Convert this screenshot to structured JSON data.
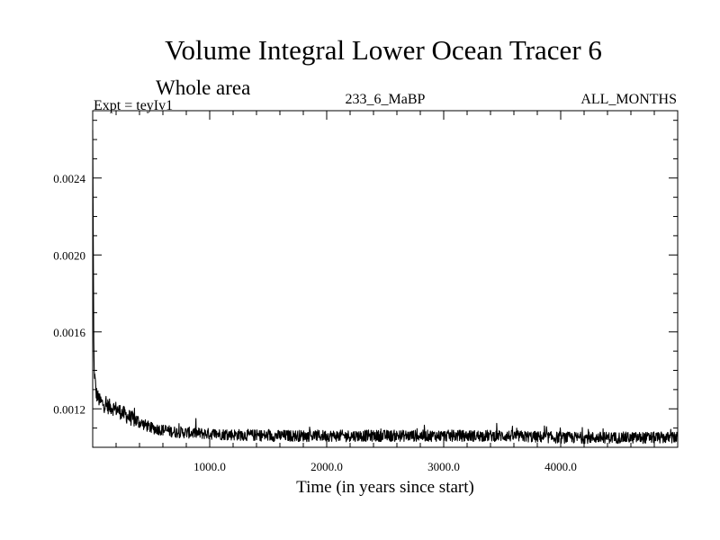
{
  "chart_data": {
    "type": "line",
    "title": "Volume Integral Lower Ocean Tracer 6",
    "subtitle": "Whole area",
    "experiment_label": "Expt = teyIv1",
    "center_label": "233_6_MaBP",
    "months_label": "ALL_MONTHS",
    "xlabel": "Time (in years since start)",
    "ylabel": "",
    "xlim": [
      0,
      5000
    ],
    "ylim": [
      0.001,
      0.00275
    ],
    "xticks": [
      1000,
      2000,
      3000,
      4000
    ],
    "xtick_labels": [
      "1000.0",
      "2000.0",
      "3000.0",
      "4000.0"
    ],
    "yticks": [
      0.0012,
      0.0016,
      0.002,
      0.0024
    ],
    "ytick_labels": [
      "0.0012",
      "0.0016",
      "0.0020",
      "0.0024"
    ],
    "series": [
      {
        "name": "Lower Ocean Tracer 6",
        "color": "#000000",
        "x": [
          0,
          10,
          30,
          60,
          100,
          200,
          300,
          500,
          700,
          1000,
          1500,
          2000,
          2500,
          3000,
          3500,
          4000,
          4500,
          5000
        ],
        "values": [
          0.00265,
          0.00142,
          0.00128,
          0.00124,
          0.00122,
          0.0012,
          0.00116,
          0.0011,
          0.00108,
          0.00107,
          0.00106,
          0.00106,
          0.00106,
          0.00106,
          0.00106,
          0.00105,
          0.00105,
          0.00105
        ],
        "noise_amplitude": 3e-05
      }
    ]
  }
}
